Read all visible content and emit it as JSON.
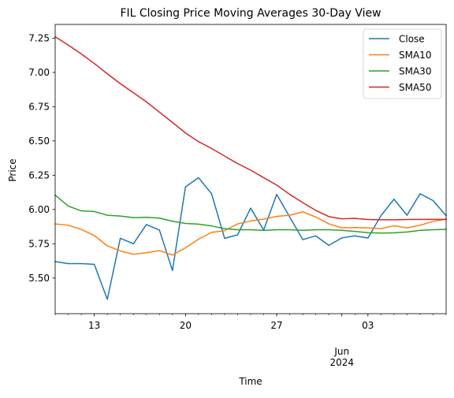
{
  "chart_data": {
    "type": "line",
    "title": "FIL Closing Price Moving Averages 30-Day View",
    "xlabel": "Time",
    "ylabel": "Price",
    "x": [
      "2024-05-10",
      "2024-05-11",
      "2024-05-12",
      "2024-05-13",
      "2024-05-14",
      "2024-05-15",
      "2024-05-16",
      "2024-05-17",
      "2024-05-18",
      "2024-05-19",
      "2024-05-20",
      "2024-05-21",
      "2024-05-22",
      "2024-05-23",
      "2024-05-24",
      "2024-05-25",
      "2024-05-26",
      "2024-05-27",
      "2024-05-28",
      "2024-05-29",
      "2024-05-30",
      "2024-05-31",
      "2024-06-01",
      "2024-06-02",
      "2024-06-03",
      "2024-06-04",
      "2024-06-05",
      "2024-06-06",
      "2024-06-07",
      "2024-06-08",
      "2024-06-09"
    ],
    "xlim": [
      "2024-05-10",
      "2024-06-09"
    ],
    "ylim": [
      5.24,
      7.35
    ],
    "yticks": [
      5.5,
      5.75,
      6.0,
      6.25,
      6.5,
      6.75,
      7.0,
      7.25
    ],
    "ytick_labels": [
      "5.50",
      "5.75",
      "6.00",
      "6.25",
      "6.50",
      "6.75",
      "7.00",
      "7.25"
    ],
    "xticks": [
      "2024-05-13",
      "2024-05-20",
      "2024-05-27",
      "2024-06-03"
    ],
    "xtick_labels": [
      "13",
      "20",
      "27",
      "03"
    ],
    "xtick_secondary": {
      "date": "2024-06-01",
      "lines": [
        "Jun",
        "2024"
      ]
    },
    "legend": "top-right",
    "grid": false,
    "series": [
      {
        "name": "Close",
        "color": "#1f77b4",
        "values": [
          5.62,
          5.605,
          5.605,
          5.6,
          5.345,
          5.79,
          5.75,
          5.89,
          5.85,
          5.555,
          6.165,
          6.232,
          6.115,
          5.79,
          5.815,
          6.01,
          5.85,
          6.11,
          5.945,
          5.78,
          5.808,
          5.738,
          5.793,
          5.808,
          5.792,
          5.955,
          6.075,
          5.958,
          6.115,
          6.065,
          5.955
        ]
      },
      {
        "name": "SMA10",
        "color": "#ff7f0e",
        "values": [
          5.895,
          5.885,
          5.855,
          5.81,
          5.735,
          5.698,
          5.673,
          5.685,
          5.7,
          5.668,
          5.72,
          5.783,
          5.833,
          5.845,
          5.895,
          5.916,
          5.93,
          5.95,
          5.958,
          5.983,
          5.945,
          5.895,
          5.866,
          5.868,
          5.866,
          5.86,
          5.882,
          5.866,
          5.885,
          5.913,
          5.93
        ]
      },
      {
        "name": "SMA30",
        "color": "#2ca02c",
        "values": [
          6.105,
          6.025,
          5.99,
          5.985,
          5.958,
          5.952,
          5.941,
          5.943,
          5.937,
          5.914,
          5.898,
          5.893,
          5.88,
          5.86,
          5.852,
          5.852,
          5.847,
          5.852,
          5.852,
          5.848,
          5.852,
          5.852,
          5.848,
          5.84,
          5.831,
          5.828,
          5.83,
          5.836,
          5.848,
          5.852,
          5.855
        ]
      },
      {
        "name": "SMA50",
        "color": "#d62728",
        "values": [
          7.26,
          7.2,
          7.135,
          7.065,
          6.99,
          6.918,
          6.852,
          6.785,
          6.71,
          6.635,
          6.558,
          6.495,
          6.445,
          6.39,
          6.335,
          6.287,
          6.232,
          6.178,
          6.11,
          6.05,
          5.993,
          5.948,
          5.932,
          5.935,
          5.927,
          5.925,
          5.925,
          5.927,
          5.928,
          5.928,
          5.928
        ]
      }
    ]
  }
}
